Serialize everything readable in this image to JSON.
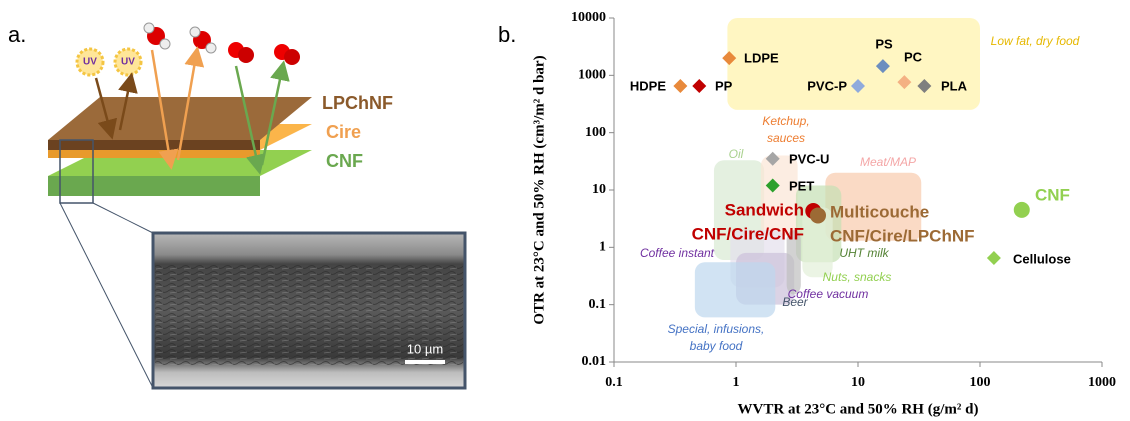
{
  "panel_a": {
    "panel_label": "a.",
    "uv_labels": [
      "UV",
      "UV"
    ],
    "layers": [
      "LPChNF",
      "Cire",
      "CNF"
    ],
    "scale_bar": "10 µm"
  },
  "chart_data": {
    "type": "scatter",
    "panel_label": "b.",
    "x_label": "WVTR at 23°C and 50% RH (g/m² d)",
    "y_label": "OTR at 23°C and 50% RH (cm³/m² d bar)",
    "xscale": "log",
    "yscale": "log",
    "xlim": [
      0.1,
      1000
    ],
    "ylim": [
      0.01,
      10000
    ],
    "xticks": [
      0.1,
      1,
      10,
      100,
      1000
    ],
    "yticks": [
      0.01,
      0.1,
      1,
      10,
      100,
      1000,
      10000
    ],
    "regions": [
      {
        "name": "Low fat, dry food",
        "x": [
          0.85,
          100
        ],
        "y": [
          250,
          10000
        ],
        "color": "#fff2a8"
      },
      {
        "name": "Oil",
        "x": [
          0.66,
          1.7
        ],
        "y": [
          0.6,
          33
        ],
        "color": "#d9ead3"
      },
      {
        "lines": [
          "Ketchup,",
          "sauces"
        ],
        "x": [
          1.6,
          3.2
        ],
        "y": [
          1.6,
          40
        ],
        "color": "#fbe5d6"
      },
      {
        "name": "Meat/MAP",
        "x": [
          5.4,
          33
        ],
        "y": [
          1.3,
          20
        ],
        "color": "#f8cbad"
      },
      {
        "name": "UHT milk",
        "x": [
          3.1,
          7.3
        ],
        "y": [
          0.55,
          12
        ],
        "color": "#c5e0b4"
      },
      {
        "name": "Nuts, snacks",
        "x": [
          3.5,
          6.2
        ],
        "y": [
          0.3,
          5
        ],
        "color": "#e2f0d9"
      },
      {
        "name": "Coffee instant",
        "x": [
          0.9,
          2.5
        ],
        "y": [
          0.2,
          2
        ],
        "color": "#e4dfec"
      },
      {
        "name": "Coffee vacuum",
        "x": [
          1,
          3
        ],
        "y": [
          0.1,
          0.8
        ],
        "color": "#ccc0da"
      },
      {
        "name": "Beer",
        "x": [
          2.6,
          3.4
        ],
        "y": [
          0.15,
          2
        ],
        "color": "#bfbfbf"
      },
      {
        "lines": [
          "Special, infusions,",
          "baby food"
        ],
        "x": [
          0.46,
          2.1
        ],
        "y": [
          0.06,
          0.55
        ],
        "color": "#bdd7ee"
      }
    ],
    "series": [
      {
        "name": "LDPE",
        "color": "#e8893b",
        "marker": "diamond",
        "x": [
          0.88
        ],
        "values": [
          2000
        ]
      },
      {
        "name": "HDPE",
        "color": "#e8893b",
        "marker": "diamond",
        "x": [
          0.35
        ],
        "values": [
          650
        ]
      },
      {
        "name": "PP",
        "color": "#c00000",
        "marker": "diamond",
        "x": [
          0.5
        ],
        "values": [
          650
        ]
      },
      {
        "name": "PS",
        "color": "#6c8ebf",
        "marker": "diamond",
        "x": [
          16
        ],
        "values": [
          1450
        ]
      },
      {
        "name": "PC",
        "color": "#f4b183",
        "marker": "diamond",
        "x": [
          24
        ],
        "values": [
          760
        ]
      },
      {
        "name": "PVC-P",
        "color": "#8faadc",
        "marker": "diamond",
        "x": [
          10
        ],
        "values": [
          650
        ]
      },
      {
        "name": "PLA",
        "color": "#7f7f7f",
        "marker": "diamond",
        "x": [
          35
        ],
        "values": [
          650
        ]
      },
      {
        "name": "PVC-U",
        "color": "#a6a6a6",
        "marker": "diamond",
        "x": [
          2
        ],
        "values": [
          35
        ]
      },
      {
        "name": "PET",
        "color": "#2ca02c",
        "marker": "diamond",
        "x": [
          2
        ],
        "values": [
          12
        ]
      },
      {
        "lines": [
          "Sandwich",
          "CNF/Cire/CNF"
        ],
        "color": "#c00000",
        "marker": "circle",
        "x": [
          4.3
        ],
        "values": [
          4.3
        ]
      },
      {
        "lines": [
          "Multicouche",
          "CNF/Cire/LPChNF"
        ],
        "color": "#9c6a35",
        "marker": "circle",
        "x": [
          4.7
        ],
        "values": [
          3.6
        ]
      },
      {
        "name": "CNF",
        "color": "#92d050",
        "marker": "circle",
        "x": [
          220
        ],
        "values": [
          4.5
        ]
      },
      {
        "name": "Cellulose",
        "color": "#92d050",
        "marker": "diamond",
        "x": [
          130
        ],
        "values": [
          0.65
        ]
      }
    ]
  }
}
